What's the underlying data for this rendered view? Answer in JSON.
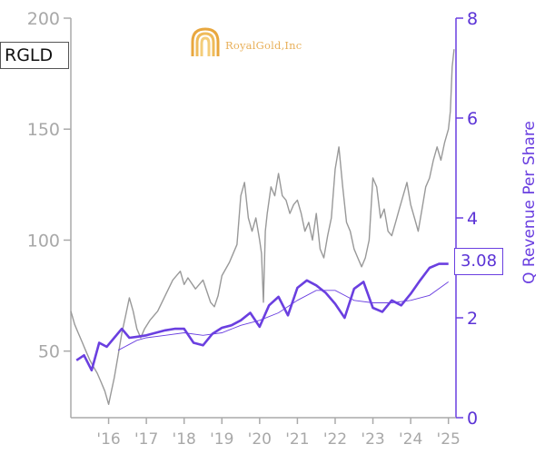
{
  "chart_data": {
    "type": "line",
    "ticker": "RGLD",
    "logo_text": "RoyalGold,Inc",
    "last_value_label": "3.08",
    "y2label": "Q Revenue Per Share",
    "x_ticks": [
      "'16",
      "'17",
      "'18",
      "'19",
      "'20",
      "'21",
      "'22",
      "'23",
      "'24",
      "'25"
    ],
    "x_tick_years": [
      2016,
      2017,
      2018,
      2019,
      2020,
      2021,
      2022,
      2023,
      2024,
      2025
    ],
    "xlim": [
      2015.0,
      2025.2
    ],
    "ylim_left": [
      20,
      200
    ],
    "yticks_left": [
      50,
      100,
      150,
      200
    ],
    "ylim_right": [
      0,
      8
    ],
    "yticks_right": [
      0,
      2,
      4,
      6,
      8
    ],
    "colors": {
      "price": "#999999",
      "revenue": "#6a3fe0",
      "revenue_avg": "#6a3fe0",
      "axis_left": "#aaaaaa",
      "axis_right": "#6a3fe0"
    },
    "series": [
      {
        "axis": "left",
        "x": [
          2015.0,
          2015.1,
          2015.2,
          2015.3,
          2015.4,
          2015.5,
          2015.6,
          2015.7,
          2015.8,
          2015.9,
          2016.0,
          2016.05,
          2016.15,
          2016.25,
          2016.35,
          2016.45,
          2016.55,
          2016.65,
          2016.75,
          2016.85,
          2016.95,
          2017.1,
          2017.3,
          2017.5,
          2017.7,
          2017.9,
          2018.0,
          2018.1,
          2018.3,
          2018.5,
          2018.7,
          2018.8,
          2018.9,
          2019.0,
          2019.2,
          2019.4,
          2019.5,
          2019.6,
          2019.7,
          2019.8,
          2019.9,
          2020.0,
          2020.05,
          2020.1,
          2020.15,
          2020.2,
          2020.3,
          2020.4,
          2020.5,
          2020.6,
          2020.7,
          2020.8,
          2020.9,
          2021.0,
          2021.1,
          2021.2,
          2021.3,
          2021.4,
          2021.5,
          2021.6,
          2021.7,
          2021.8,
          2021.9,
          2022.0,
          2022.1,
          2022.2,
          2022.3,
          2022.4,
          2022.5,
          2022.6,
          2022.7,
          2022.8,
          2022.9,
          2023.0,
          2023.1,
          2023.2,
          2023.3,
          2023.4,
          2023.5,
          2023.6,
          2023.7,
          2023.8,
          2023.9,
          2024.0,
          2024.1,
          2024.2,
          2024.3,
          2024.4,
          2024.5,
          2024.6,
          2024.7,
          2024.8,
          2024.9,
          2025.0,
          2025.05,
          2025.1,
          2025.15
        ],
        "values": [
          68,
          62,
          58,
          54,
          50,
          46,
          43,
          40,
          36,
          32,
          26,
          30,
          38,
          48,
          58,
          66,
          74,
          68,
          60,
          56,
          60,
          64,
          68,
          75,
          82,
          86,
          80,
          83,
          78,
          82,
          72,
          70,
          75,
          84,
          90,
          98,
          120,
          126,
          110,
          104,
          110,
          100,
          94,
          72,
          104,
          112,
          124,
          120,
          130,
          120,
          118,
          112,
          116,
          118,
          112,
          104,
          108,
          100,
          112,
          96,
          92,
          102,
          110,
          132,
          142,
          124,
          108,
          104,
          96,
          92,
          88,
          92,
          100,
          128,
          124,
          110,
          114,
          104,
          102,
          108,
          114,
          120,
          126,
          116,
          110,
          104,
          114,
          124,
          128,
          136,
          142,
          136,
          144,
          150,
          158,
          178,
          186
        ]
      },
      {
        "name": "Q Revenue Per Share",
        "axis": "right",
        "x": [
          2015.15,
          2015.35,
          2015.55,
          2015.75,
          2015.95,
          2016.15,
          2016.35,
          2016.55,
          2016.75,
          2017.0,
          2017.25,
          2017.5,
          2017.75,
          2018.0,
          2018.25,
          2018.5,
          2018.75,
          2019.0,
          2019.25,
          2019.5,
          2019.75,
          2020.0,
          2020.25,
          2020.5,
          2020.75,
          2021.0,
          2021.25,
          2021.5,
          2021.75,
          2022.0,
          2022.25,
          2022.5,
          2022.75,
          2023.0,
          2023.25,
          2023.5,
          2023.75,
          2024.0,
          2024.25,
          2024.5,
          2024.75,
          2025.0
        ],
        "values": [
          1.15,
          1.25,
          0.95,
          1.5,
          1.42,
          1.6,
          1.78,
          1.6,
          1.62,
          1.65,
          1.7,
          1.75,
          1.78,
          1.78,
          1.5,
          1.45,
          1.68,
          1.8,
          1.85,
          1.95,
          2.1,
          1.82,
          2.25,
          2.42,
          2.05,
          2.6,
          2.75,
          2.65,
          2.5,
          2.28,
          2.0,
          2.58,
          2.72,
          2.2,
          2.12,
          2.35,
          2.25,
          2.48,
          2.75,
          3.0,
          3.08,
          3.08
        ]
      },
      {
        "axis": "right",
        "x": [
          2016.25,
          2016.5,
          2016.75,
          2017.0,
          2017.5,
          2018.0,
          2018.5,
          2019.0,
          2019.5,
          2020.0,
          2020.5,
          2021.0,
          2021.5,
          2022.0,
          2022.5,
          2023.0,
          2023.5,
          2024.0,
          2024.5,
          2025.0
        ],
        "values": [
          1.35,
          1.45,
          1.55,
          1.6,
          1.65,
          1.7,
          1.65,
          1.7,
          1.85,
          1.95,
          2.1,
          2.35,
          2.55,
          2.55,
          2.35,
          2.3,
          2.3,
          2.35,
          2.45,
          2.72
        ]
      }
    ]
  }
}
